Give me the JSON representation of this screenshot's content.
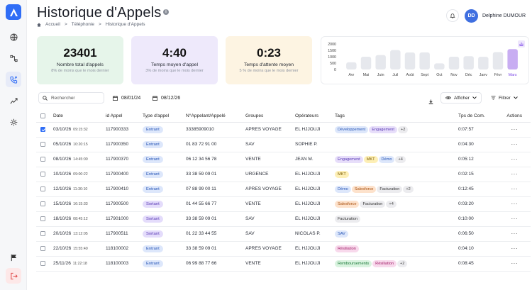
{
  "page": {
    "title": "Historique d'Appels",
    "info_symbol": "i"
  },
  "breadcrumb": [
    "Accueil",
    "Téléphonie",
    "Historique d'Appels"
  ],
  "breadcrumb_sep": ">",
  "user": {
    "initials": "DD",
    "name": "Delphine DUMOUR"
  },
  "kpis": [
    {
      "value": "23401",
      "label": "Nombre total d'appels",
      "sub": "8% de moins que le mois dernier",
      "bg": "#e6f5ea"
    },
    {
      "value": "4:40",
      "label": "Temps moyen d'appel",
      "sub": "3% de moins que le mois dernier",
      "bg": "#eee9fb"
    },
    {
      "value": "0:23",
      "label": "Temps d'attente moyen",
      "sub": "5 % de moins que le mois dernier",
      "bg": "#fdf4e2"
    }
  ],
  "chart_data": {
    "type": "bar",
    "categories": [
      "Avr",
      "Mai",
      "Juin",
      "Juil",
      "Août",
      "Sept",
      "Oct",
      "Nov",
      "Déc",
      "Janv",
      "Févr",
      "Mars"
    ],
    "values": [
      560,
      1000,
      1130,
      1520,
      1330,
      1340,
      480,
      1000,
      1040,
      990,
      1360,
      1600
    ],
    "yticks": [
      "2000",
      "1500",
      "1000",
      "500",
      "0"
    ],
    "ylim": [
      0,
      2000
    ],
    "highlight": "Mars",
    "colors": {
      "bar": "#e6e8ed",
      "highlight": "#c8adf2",
      "highlight_label": "#7a45e6"
    }
  },
  "toolbar": {
    "search_placeholder": "Rechercher",
    "date_from": "08/01/24",
    "date_to": "08/12/26",
    "show_label": "Afficher",
    "filter_label": "Filtrer"
  },
  "table": {
    "headers": [
      "Date",
      "id Appel",
      "Type d'appel",
      "N°Appelant/Appelé",
      "Groupes",
      "Opérateurs",
      "Tags",
      "Tps de Com.",
      "Actions"
    ],
    "rows": [
      {
        "checked": true,
        "date": "03/10/26",
        "time": "09:15:32",
        "id": "117900333",
        "type": "Entrant",
        "number": "33385909010",
        "group": "APRES VOYAGE",
        "operator": "EL HJJOUJI",
        "tags": [
          {
            "t": "Développement",
            "bg": "#dde7fb",
            "fg": "#2856b6"
          },
          {
            "t": "Engagement",
            "bg": "#e7defa",
            "fg": "#5a3bb5"
          },
          {
            "t": "+2",
            "bg": "#ececef",
            "fg": "#444"
          }
        ],
        "duration": "0:07:57"
      },
      {
        "checked": false,
        "date": "05/10/26",
        "time": "10:20:15",
        "id": "117900350",
        "type": "Entrant",
        "number": "01 83 72 91 00",
        "group": "SAV",
        "operator": "SOPHIE P.",
        "tags": [],
        "duration": "0:04:30"
      },
      {
        "checked": false,
        "date": "08/10/26",
        "time": "14:45:00",
        "id": "117900370",
        "type": "Entrant",
        "number": "06 12 34 56 78",
        "group": "VENTE",
        "operator": "JEAN M.",
        "tags": [
          {
            "t": "Engagement",
            "bg": "#e7defa",
            "fg": "#5a3bb5"
          },
          {
            "t": "MKT",
            "bg": "#fdefb6",
            "fg": "#7a5a00"
          },
          {
            "t": "Démo",
            "bg": "#dde7fb",
            "fg": "#2856b6"
          },
          {
            "t": "+4",
            "bg": "#ececef",
            "fg": "#444"
          }
        ],
        "duration": "0:05:12"
      },
      {
        "checked": false,
        "date": "10/10/26",
        "time": "09:00:22",
        "id": "117900400",
        "type": "Entrant",
        "number": "33 38 59 09 01",
        "group": "URGENCE",
        "operator": "EL HJJOUJI",
        "tags": [
          {
            "t": "MKT",
            "bg": "#fdefb6",
            "fg": "#7a5a00"
          }
        ],
        "duration": "0:02:15"
      },
      {
        "checked": false,
        "date": "12/10/26",
        "time": "11:30:10",
        "id": "117900410",
        "type": "Entrant",
        "number": "07 88 99 00 11",
        "group": "APRES VOYAGE",
        "operator": "EL HJJOUJI",
        "tags": [
          {
            "t": "Démo",
            "bg": "#dde7fb",
            "fg": "#2856b6"
          },
          {
            "t": "Salesforce",
            "bg": "#fde2cc",
            "fg": "#a64d0b"
          },
          {
            "t": "Facturation",
            "bg": "#ececef",
            "fg": "#333"
          },
          {
            "t": "+2",
            "bg": "#ececef",
            "fg": "#444"
          }
        ],
        "duration": "0:12:45"
      },
      {
        "checked": false,
        "date": "15/10/26",
        "time": "16:15:33",
        "id": "117900500",
        "type": "Sortant",
        "number": "01 44 55 66 77",
        "group": "VENTE",
        "operator": "EL HJJOUJI",
        "tags": [
          {
            "t": "Salesforce",
            "bg": "#fde2cc",
            "fg": "#a64d0b"
          },
          {
            "t": "Facturation",
            "bg": "#ececef",
            "fg": "#333"
          },
          {
            "t": "+4",
            "bg": "#ececef",
            "fg": "#444"
          }
        ],
        "duration": "0:03:20"
      },
      {
        "checked": false,
        "date": "18/10/26",
        "time": "08:45:12",
        "id": "117901000",
        "type": "Sortant",
        "number": "33 38 59 09 01",
        "group": "SAV",
        "operator": "EL HJJOUJI",
        "tags": [
          {
            "t": "Facturation",
            "bg": "#ececef",
            "fg": "#333"
          }
        ],
        "duration": "0:10:00"
      },
      {
        "checked": false,
        "date": "20/10/26",
        "time": "13:12:05",
        "id": "117900511",
        "type": "Sortant",
        "number": "01 22 33 44 55",
        "group": "SAV",
        "operator": "NICOLAS P.",
        "tags": [
          {
            "t": "SAV",
            "bg": "#dde7fb",
            "fg": "#2856b6"
          }
        ],
        "duration": "0:06:50"
      },
      {
        "checked": false,
        "date": "22/10/26",
        "time": "15:55:40",
        "id": "118100002",
        "type": "Entrant",
        "number": "33 38 59 09 01",
        "group": "APRES VOYAGE",
        "operator": "EL HJJOUJI",
        "tags": [
          {
            "t": "Résiliation",
            "bg": "#f8d9ec",
            "fg": "#a3236b"
          }
        ],
        "duration": "0:04:10"
      },
      {
        "checked": false,
        "date": "25/11/26",
        "time": "11:22:18",
        "id": "118100003",
        "type": "Entrant",
        "number": "06 99 88 77 66",
        "group": "VENTE",
        "operator": "EL HJJOUJI",
        "tags": [
          {
            "t": "Remboursements",
            "bg": "#d9f3df",
            "fg": "#1d7a3a"
          },
          {
            "t": "Résiliation",
            "bg": "#f8d9ec",
            "fg": "#a3236b"
          },
          {
            "t": "+2",
            "bg": "#ececef",
            "fg": "#444"
          }
        ],
        "duration": "0:08:45"
      }
    ]
  },
  "icons": {
    "more": "···"
  },
  "colors": {
    "accent": "#2f6df6",
    "exit": "#e04b4b"
  }
}
